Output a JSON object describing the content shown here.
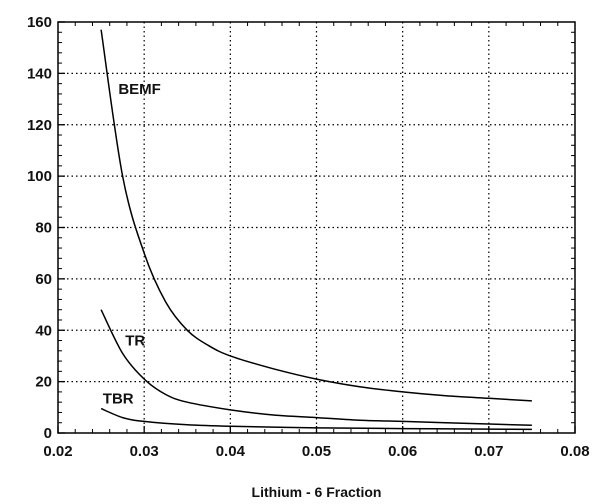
{
  "chart_data": {
    "type": "line",
    "xlabel": "Lithium - 6 Fraction",
    "ylabel": "",
    "xlim": [
      0.02,
      0.08
    ],
    "ylim": [
      0,
      160
    ],
    "x_ticks": [
      "0.02",
      "0.03",
      "0.04",
      "0.05",
      "0.06",
      "0.07",
      "0.08"
    ],
    "y_ticks": [
      "0",
      "20",
      "40",
      "60",
      "80",
      "100",
      "120",
      "140",
      "160"
    ],
    "grid": true,
    "series": [
      {
        "name": "BEMF",
        "x": [
          0.025,
          0.0275,
          0.03,
          0.0325,
          0.035,
          0.0375,
          0.04,
          0.045,
          0.05,
          0.055,
          0.06,
          0.065,
          0.07,
          0.075
        ],
        "y": [
          157,
          100,
          70,
          51,
          40,
          34,
          30,
          25,
          21,
          18,
          16,
          14.5,
          13.5,
          12.5
        ]
      },
      {
        "name": "TR",
        "x": [
          0.025,
          0.0275,
          0.03,
          0.0325,
          0.035,
          0.04,
          0.045,
          0.05,
          0.055,
          0.06,
          0.065,
          0.07,
          0.075
        ],
        "y": [
          48,
          31,
          21,
          15,
          12,
          9,
          7,
          6,
          5,
          4.5,
          4,
          3.5,
          3
        ]
      },
      {
        "name": "TBR",
        "x": [
          0.025,
          0.0275,
          0.03,
          0.035,
          0.04,
          0.05,
          0.06,
          0.07,
          0.075
        ],
        "y": [
          9.5,
          6,
          4.5,
          3.2,
          2.6,
          2,
          1.7,
          1.5,
          1.4
        ]
      }
    ]
  }
}
